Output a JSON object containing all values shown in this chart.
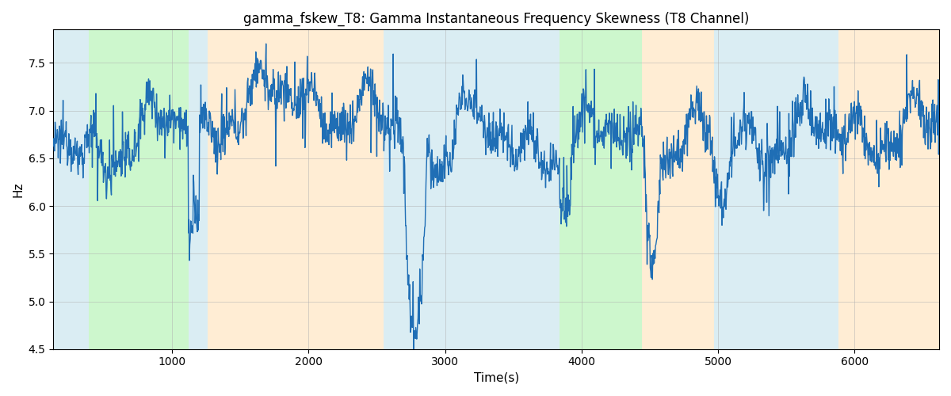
{
  "title": "gamma_fskew_T8: Gamma Instantaneous Frequency Skewness (T8 Channel)",
  "xlabel": "Time(s)",
  "ylabel": "Hz",
  "ylim": [
    4.5,
    7.85
  ],
  "xlim": [
    130,
    6620
  ],
  "line_color": "#1f6eb5",
  "line_width": 1.0,
  "background_bands": [
    {
      "xmin": 130,
      "xmax": 390,
      "color": "#add8e6",
      "alpha": 0.45
    },
    {
      "xmin": 390,
      "xmax": 1120,
      "color": "#90ee90",
      "alpha": 0.45
    },
    {
      "xmin": 1120,
      "xmax": 1260,
      "color": "#add8e6",
      "alpha": 0.45
    },
    {
      "xmin": 1260,
      "xmax": 2550,
      "color": "#ffd9a0",
      "alpha": 0.45
    },
    {
      "xmin": 2550,
      "xmax": 3840,
      "color": "#add8e6",
      "alpha": 0.45
    },
    {
      "xmin": 3840,
      "xmax": 4440,
      "color": "#90ee90",
      "alpha": 0.45
    },
    {
      "xmin": 4440,
      "xmax": 4970,
      "color": "#ffd9a0",
      "alpha": 0.45
    },
    {
      "xmin": 4970,
      "xmax": 5880,
      "color": "#add8e6",
      "alpha": 0.45
    },
    {
      "xmin": 5880,
      "xmax": 6620,
      "color": "#ffd9a0",
      "alpha": 0.45
    }
  ],
  "base_level": 6.75,
  "noise_std": 0.12,
  "n_points": 2000,
  "time_start": 130,
  "time_end": 6620
}
